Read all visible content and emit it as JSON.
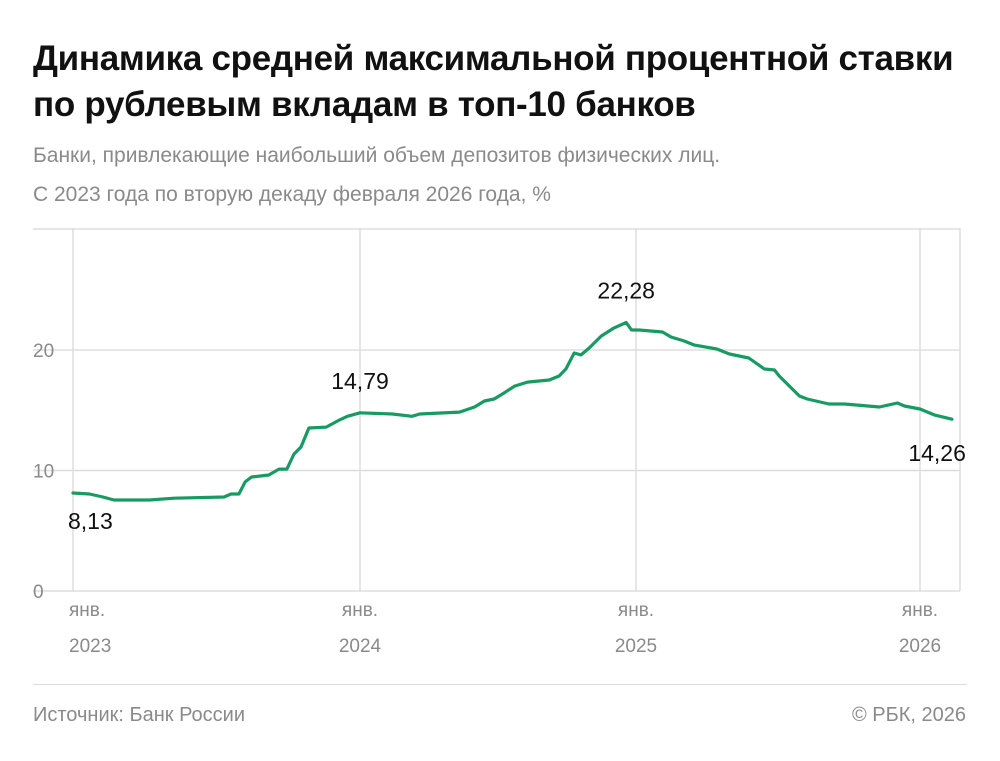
{
  "title": "Динамика средней максимальной процентной ставки по рублевым вкладам в топ-10 банков",
  "subtitle_1": "Банки, привлекающие наибольший объем депозитов физических лиц.",
  "subtitle_2": "С 2023 года по вторую декаду февраля 2026 года, %",
  "source": "Источник: Банк России",
  "copyright": "© РБК, 2026",
  "colors": {
    "line": "#1a9a63",
    "grid": "#dddddd"
  },
  "chart_data": {
    "type": "line",
    "title": "Динамика средней максимальной процентной ставки по рублевым вкладам в топ-10 банков",
    "ylim": [
      0,
      30
    ],
    "y_ticks": [
      0,
      10,
      20
    ],
    "x_ticks": [
      {
        "date": "2023-01-01",
        "month": "янв.",
        "year": "2023"
      },
      {
        "date": "2024-01-01",
        "month": "янв.",
        "year": "2024"
      },
      {
        "date": "2025-01-01",
        "month": "янв.",
        "year": "2025"
      },
      {
        "date": "2026-01-01",
        "month": "янв.",
        "year": "2026"
      }
    ],
    "grid": true,
    "annotations": [
      {
        "date": "2023-01-01",
        "label": "8,13"
      },
      {
        "date": "2024-01-01",
        "label": "14,79"
      },
      {
        "date": "2024-12-19",
        "label": "22,28"
      },
      {
        "date": "2026-02-11",
        "label": "14,26"
      }
    ],
    "series": [
      {
        "x": [
          "2023-01-01",
          "2023-01-22",
          "2023-02-08",
          "2023-02-22",
          "2023-04-08",
          "2023-05-10",
          "2023-07-12",
          "2023-07-21",
          "2023-07-31",
          "2023-08-08",
          "2023-08-16",
          "2023-09-07",
          "2023-09-20",
          "2023-09-30",
          "2023-10-09",
          "2023-10-18",
          "2023-10-28",
          "2023-11-19",
          "2023-12-06",
          "2023-12-16",
          "2024-01-01",
          "2024-02-13",
          "2024-03-10",
          "2024-03-20",
          "2024-05-12",
          "2024-06-01",
          "2024-06-14",
          "2024-06-27",
          "2024-07-10",
          "2024-07-24",
          "2024-08-10",
          "2024-09-08",
          "2024-09-21",
          "2024-09-30",
          "2024-10-11",
          "2024-10-20",
          "2024-10-31",
          "2024-11-16",
          "2024-12-03",
          "2024-12-19",
          "2024-12-26",
          "2025-01-05",
          "2025-02-04",
          "2025-02-15",
          "2025-03-04",
          "2025-03-17",
          "2025-04-15",
          "2025-05-01",
          "2025-05-26",
          "2025-06-15",
          "2025-06-28",
          "2025-07-04",
          "2025-07-30",
          "2025-08-09",
          "2025-09-06",
          "2025-09-26",
          "2025-11-10",
          "2025-12-03",
          "2025-12-12",
          "2026-01-01",
          "2026-01-20",
          "2026-02-11"
        ],
        "y": [
          8.13,
          8.05,
          7.8,
          7.55,
          7.55,
          7.7,
          7.8,
          8.05,
          8.05,
          9.05,
          9.46,
          9.63,
          10.12,
          10.12,
          11.37,
          11.95,
          13.53,
          13.6,
          14.2,
          14.5,
          14.79,
          14.69,
          14.5,
          14.69,
          14.85,
          15.27,
          15.77,
          15.93,
          16.43,
          17.0,
          17.34,
          17.51,
          17.84,
          18.42,
          19.75,
          19.59,
          20.17,
          21.16,
          21.83,
          22.28,
          21.66,
          21.66,
          21.49,
          21.08,
          20.75,
          20.41,
          20.08,
          19.67,
          19.34,
          18.42,
          18.34,
          17.84,
          16.18,
          15.93,
          15.52,
          15.52,
          15.27,
          15.6,
          15.35,
          15.1,
          14.6,
          14.26
        ]
      }
    ]
  }
}
